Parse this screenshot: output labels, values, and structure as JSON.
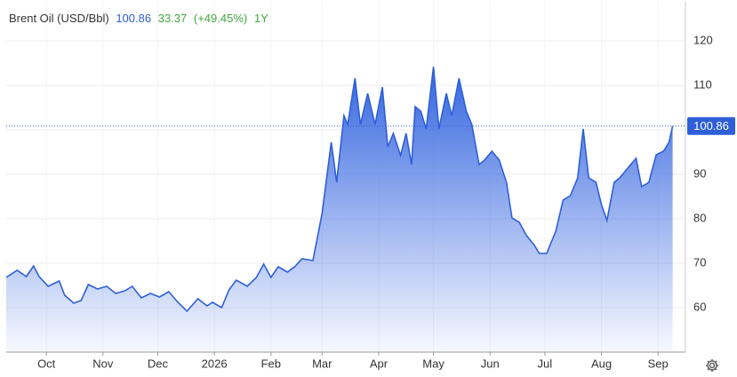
{
  "chart_data": {
    "type": "area",
    "header": {
      "title": "Brent Oil (USD/Bbl)",
      "price": 100.86,
      "change": 33.37,
      "change_label": "(+49.45%)",
      "period": "1Y"
    },
    "x": [
      0,
      6,
      11,
      15,
      18,
      23,
      29,
      32,
      37,
      41,
      45,
      50,
      55,
      60,
      65,
      69,
      74,
      79,
      84,
      89,
      94,
      99,
      105,
      110,
      113,
      118,
      122,
      126,
      132,
      137,
      141,
      145,
      149,
      154,
      158,
      162,
      168,
      173,
      178,
      181,
      185,
      187,
      191,
      194,
      198,
      202,
      206,
      209,
      212,
      216,
      219,
      222,
      224,
      227,
      230,
      234,
      237,
      241,
      244,
      248,
      252,
      255,
      259,
      262,
      266,
      270,
      274,
      277,
      281,
      285,
      289,
      292,
      296,
      298,
      301,
      305,
      309,
      313,
      316,
      319,
      323,
      326,
      329,
      333,
      336,
      340,
      345,
      348,
      352,
      356,
      360,
      363,
      365
    ],
    "series": [
      {
        "name": "Brent Oil",
        "color": "#2f5fd8",
        "values": [
          66.8,
          68.4,
          67,
          69.4,
          67,
          64.8,
          66,
          62.8,
          61,
          61.6,
          65.2,
          64.2,
          64.8,
          63.2,
          63.8,
          64.8,
          62.2,
          63.2,
          62.4,
          63.6,
          61.2,
          59.2,
          62,
          60.4,
          61.2,
          60,
          64,
          66.2,
          64.8,
          66.8,
          69.8,
          66.8,
          69.2,
          68,
          69.2,
          71,
          70.6,
          81.2,
          97.2,
          88.2,
          103.2,
          101.2,
          111.6,
          101.2,
          108.2,
          101.2,
          109.6,
          96.2,
          99.2,
          94.2,
          99.2,
          92.2,
          105.2,
          104.2,
          100.2,
          114.2,
          100.2,
          108.2,
          103.2,
          111.6,
          104.2,
          101.2,
          92.2,
          93.2,
          95.2,
          93.2,
          88.2,
          80.2,
          79.2,
          76.2,
          74.2,
          72.2,
          72.2,
          74.2,
          77.2,
          84.2,
          85.2,
          89.2,
          100.2,
          89.2,
          88.2,
          83.2,
          79.6,
          88.2,
          89.2,
          91.2,
          93.6,
          87.2,
          88.2,
          94.4,
          95.2,
          97.2,
          100.86
        ]
      }
    ],
    "xlim": [
      0,
      372
    ],
    "xticks": [
      {
        "value": 22,
        "label": "Oct"
      },
      {
        "value": 53,
        "label": "Nov"
      },
      {
        "value": 83,
        "label": "Dec"
      },
      {
        "value": 114,
        "label": "2026"
      },
      {
        "value": 145,
        "label": "Feb"
      },
      {
        "value": 173,
        "label": "Mar"
      },
      {
        "value": 204,
        "label": "Apr"
      },
      {
        "value": 234,
        "label": "May"
      },
      {
        "value": 265,
        "label": "Jun"
      },
      {
        "value": 295,
        "label": "Jul"
      },
      {
        "value": 326,
        "label": "Aug"
      },
      {
        "value": 357,
        "label": "Sep"
      }
    ],
    "ylim": [
      50,
      129
    ],
    "yticks": [
      60,
      70,
      80,
      90,
      100,
      110,
      120
    ],
    "grid": true
  }
}
